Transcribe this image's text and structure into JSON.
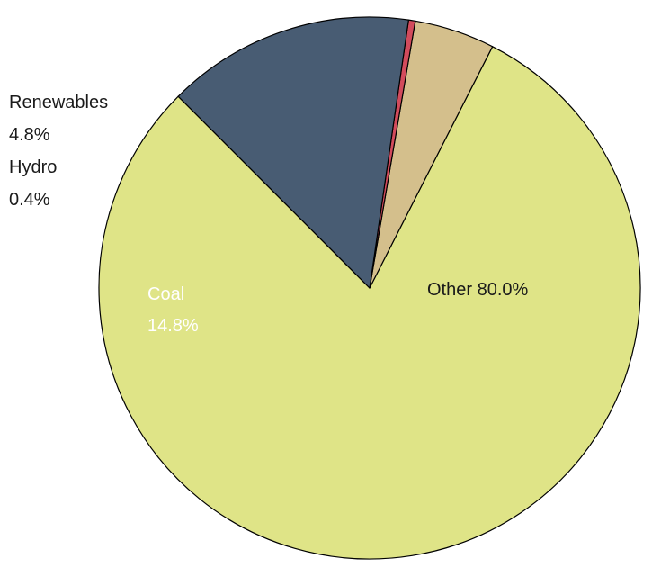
{
  "chart_data": {
    "type": "pie",
    "title": "",
    "start_angle_deg": 135,
    "direction": "counterclockwise",
    "slices": [
      {
        "name": "Other",
        "value": 80.0,
        "label": "Other 80.0%",
        "color": "#dfe487"
      },
      {
        "name": "Renewables",
        "value": 4.8,
        "label_name": "Renewables",
        "label_value": "4.8%",
        "color": "#d4bf8c"
      },
      {
        "name": "Hydro",
        "value": 0.4,
        "label_name": "Hydro",
        "label_value": "0.4%",
        "color": "#d24b5c"
      },
      {
        "name": "Coal",
        "value": 14.8,
        "label_name": "Coal",
        "label_value": "14.8%",
        "color": "#485c73"
      }
    ],
    "edge_color": "#000000"
  }
}
